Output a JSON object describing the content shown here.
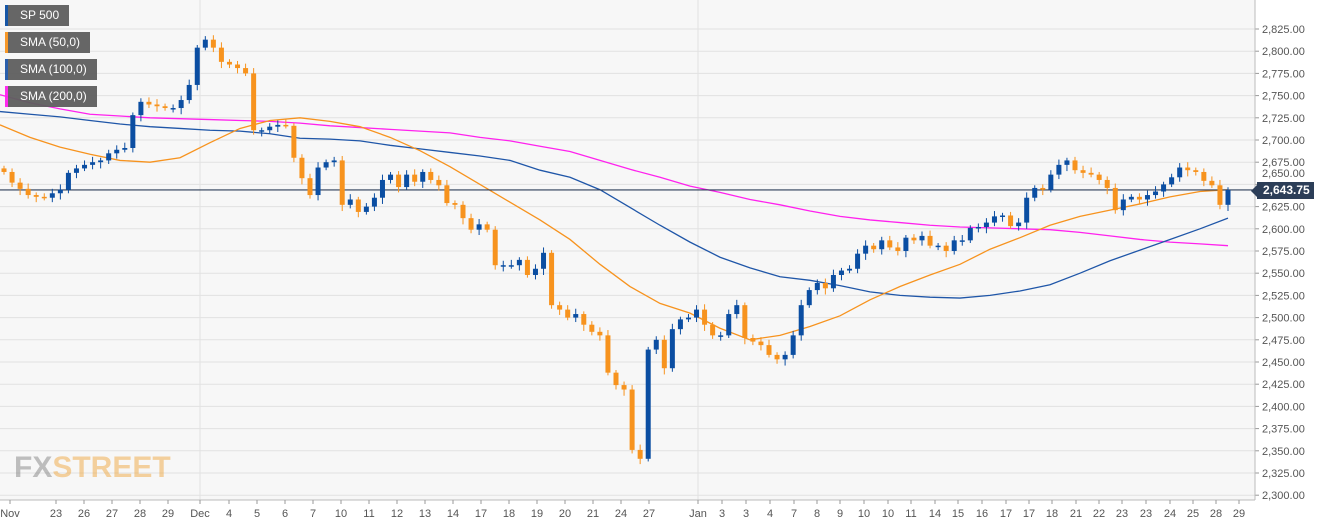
{
  "legend": [
    {
      "label": "SP 500",
      "color": "#0b4ea2"
    },
    {
      "label": "SMA (50,0)",
      "color": "#f7931e"
    },
    {
      "label": "SMA (100,0)",
      "color": "#1f56a8"
    },
    {
      "label": "SMA (200,0)",
      "color": "#ff22ee"
    }
  ],
  "logo": {
    "fx": "FX",
    "street": "STREET"
  },
  "chart_data": {
    "type": "candlestick",
    "title": "SP 500",
    "ylim": [
      2300,
      2825
    ],
    "yticks": [
      "2,300.00",
      "2,325.00",
      "2,350.00",
      "2,375.00",
      "2,400.00",
      "2,425.00",
      "2,450.00",
      "2,475.00",
      "2,500.00",
      "2,525.00",
      "2,550.00",
      "2,575.00",
      "2,600.00",
      "2,625.00",
      "2,650.00",
      "2,675.00",
      "2,700.00",
      "2,725.00",
      "2,750.00",
      "2,775.00",
      "2,800.00",
      "2,825.00"
    ],
    "xticks": [
      "Nov",
      "23",
      "26",
      "27",
      "28",
      "29",
      "Dec",
      "4",
      "5",
      "6",
      "7",
      "10",
      "11",
      "12",
      "13",
      "14",
      "17",
      "18",
      "19",
      "20",
      "21",
      "24",
      "27",
      "Jan",
      "3",
      "3",
      "4",
      "7",
      "8",
      "9",
      "10",
      "10",
      "11",
      "14",
      "15",
      "16",
      "17",
      "17",
      "18",
      "21",
      "22",
      "23",
      "23",
      "24",
      "25",
      "28",
      "29"
    ],
    "current_price": 2643.75,
    "current_price_label": "2,643.75",
    "colors": {
      "up": "#0b4ea2",
      "down": "#f7931e",
      "sma50": "#f7931e",
      "sma100": "#1f56a8",
      "sma200": "#ff22ee",
      "price_line": "#2c3e58"
    },
    "closes": [
      2664,
      2652,
      2645,
      2638,
      2636,
      2635,
      2640,
      2644,
      2663,
      2668,
      2672,
      2675,
      2677,
      2685,
      2689,
      2691,
      2728,
      2743,
      2740,
      2738,
      2736,
      2736,
      2745,
      2762,
      2804,
      2813,
      2804,
      2788,
      2785,
      2781,
      2775,
      2711,
      2711,
      2715,
      2717,
      2716,
      2680,
      2657,
      2638,
      2669,
      2675,
      2677,
      2627,
      2633,
      2619,
      2625,
      2635,
      2655,
      2661,
      2647,
      2661,
      2653,
      2664,
      2655,
      2649,
      2629,
      2627,
      2612,
      2599,
      2605,
      2599,
      2559,
      2559,
      2559,
      2565,
      2548,
      2555,
      2573,
      2514,
      2509,
      2500,
      2504,
      2492,
      2484,
      2480,
      2438,
      2424,
      2419,
      2351,
      2341,
      2464,
      2475,
      2443,
      2487,
      2498,
      2500,
      2509,
      2492,
      2480,
      2480,
      2504,
      2514,
      2477,
      2473,
      2469,
      2458,
      2453,
      2458,
      2480,
      2514,
      2531,
      2539,
      2533,
      2548,
      2553,
      2555,
      2572,
      2581,
      2577,
      2587,
      2579,
      2575,
      2590,
      2587,
      2592,
      2581,
      2581,
      2575,
      2587,
      2587,
      2601,
      2602,
      2607,
      2614,
      2615,
      2603,
      2607,
      2635,
      2646,
      2644,
      2661,
      2672,
      2677,
      2666,
      2663,
      2661,
      2655,
      2646,
      2621,
      2633,
      2636,
      2633,
      2638,
      2642,
      2650,
      2658,
      2669,
      2666,
      2664,
      2654,
      2649,
      2627,
      2643.75
    ],
    "sma50": [
      2717,
      2703,
      2692,
      2684,
      2677,
      2675,
      2680,
      2697,
      2713,
      2722,
      2725,
      2721,
      2715,
      2703,
      2688,
      2670,
      2650,
      2630,
      2610,
      2588,
      2560,
      2535,
      2516,
      2505,
      2488,
      2475,
      2480,
      2490,
      2502,
      2520,
      2535,
      2548,
      2560,
      2577,
      2590,
      2604,
      2614,
      2621,
      2628,
      2636,
      2642,
      2644
    ],
    "sma100": [
      2732,
      2729,
      2726,
      2722,
      2718,
      2715,
      2713,
      2711,
      2710,
      2707,
      2702,
      2701,
      2699,
      2694,
      2690,
      2686,
      2682,
      2677,
      2666,
      2658,
      2644,
      2624,
      2604,
      2585,
      2568,
      2556,
      2546,
      2542,
      2536,
      2529,
      2525,
      2523,
      2522,
      2525,
      2530,
      2537,
      2550,
      2564,
      2576,
      2588,
      2600,
      2612
    ],
    "sma200": [
      2751,
      2742,
      2735,
      2729,
      2727,
      2725,
      2724,
      2723,
      2722,
      2721,
      2719,
      2716,
      2714,
      2712,
      2710,
      2708,
      2703,
      2699,
      2693,
      2687,
      2677,
      2667,
      2658,
      2648,
      2641,
      2633,
      2627,
      2620,
      2614,
      2610,
      2607,
      2604,
      2602,
      2601,
      2600,
      2599,
      2596,
      2592,
      2588,
      2585,
      2583,
      2581
    ]
  }
}
